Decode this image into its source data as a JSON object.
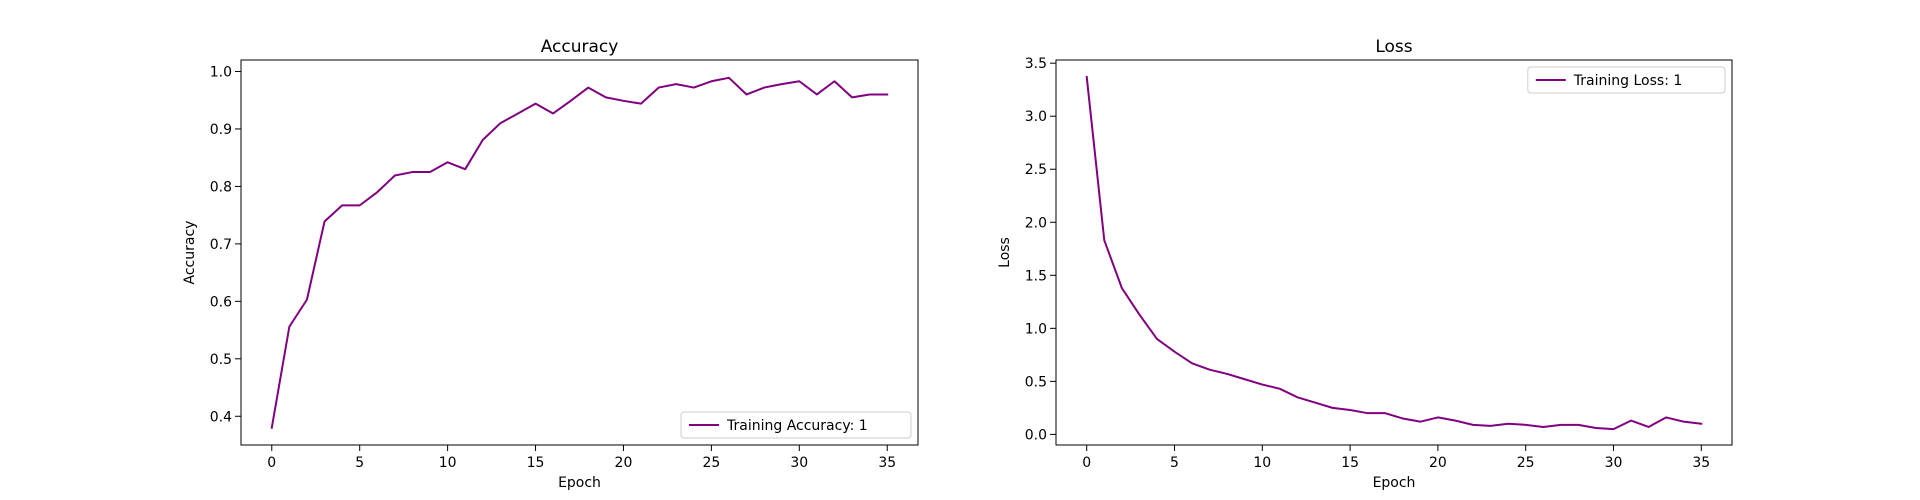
{
  "chart_data": [
    {
      "type": "line",
      "title": "Accuracy",
      "xlabel": "Epoch",
      "ylabel": "Accuracy",
      "xlim": [
        -1.75,
        36.75
      ],
      "ylim": [
        0.35,
        1.02
      ],
      "xticks": [
        0,
        5,
        10,
        15,
        20,
        25,
        30,
        35
      ],
      "yticks": [
        0.4,
        0.5,
        0.6,
        0.7,
        0.8,
        0.9,
        1.0
      ],
      "ytick_labels": [
        "0.4",
        "0.5",
        "0.6",
        "0.7",
        "0.8",
        "0.9",
        "1.0"
      ],
      "grid": false,
      "legend_position": "lower-right",
      "series": [
        {
          "name": "Training Accuracy: 1",
          "color": "#800080",
          "x": [
            0,
            1,
            2,
            3,
            4,
            5,
            6,
            7,
            8,
            9,
            10,
            11,
            12,
            13,
            14,
            15,
            16,
            17,
            18,
            19,
            20,
            21,
            22,
            23,
            24,
            25,
            26,
            27,
            28,
            29,
            30,
            31,
            32,
            33,
            34,
            35
          ],
          "values": [
            0.38,
            0.556,
            0.603,
            0.739,
            0.767,
            0.767,
            0.79,
            0.819,
            0.825,
            0.825,
            0.842,
            0.83,
            0.881,
            0.91,
            0.927,
            0.944,
            0.927,
            0.949,
            0.972,
            0.955,
            0.949,
            0.944,
            0.972,
            0.978,
            0.972,
            0.983,
            0.989,
            0.96,
            0.972,
            0.978,
            0.983,
            0.96,
            0.983,
            0.955,
            0.96,
            0.96
          ]
        }
      ]
    },
    {
      "type": "line",
      "title": "Loss",
      "xlabel": "Epoch",
      "ylabel": "Loss",
      "xlim": [
        -1.75,
        36.75
      ],
      "ylim": [
        -0.1,
        3.53
      ],
      "xticks": [
        0,
        5,
        10,
        15,
        20,
        25,
        30,
        35
      ],
      "yticks": [
        0,
        0.5,
        1.0,
        1.5,
        2.0,
        2.5,
        3.0,
        3.5
      ],
      "ytick_labels": [
        "0.0",
        "0.5",
        "1.0",
        "1.5",
        "2.0",
        "2.5",
        "3.0",
        "3.5"
      ],
      "grid": false,
      "legend_position": "upper-right",
      "series": [
        {
          "name": "Training Loss: 1",
          "color": "#800080",
          "x": [
            0,
            1,
            2,
            3,
            4,
            5,
            6,
            7,
            8,
            9,
            10,
            11,
            12,
            13,
            14,
            15,
            16,
            17,
            18,
            19,
            20,
            21,
            22,
            23,
            24,
            25,
            26,
            27,
            28,
            29,
            30,
            31,
            32,
            33,
            34,
            35
          ],
          "values": [
            3.37,
            1.83,
            1.38,
            1.13,
            0.9,
            0.78,
            0.67,
            0.61,
            0.57,
            0.52,
            0.47,
            0.43,
            0.35,
            0.3,
            0.25,
            0.23,
            0.2,
            0.2,
            0.15,
            0.12,
            0.16,
            0.13,
            0.09,
            0.08,
            0.1,
            0.09,
            0.07,
            0.09,
            0.09,
            0.06,
            0.05,
            0.13,
            0.07,
            0.16,
            0.12,
            0.1
          ]
        }
      ]
    }
  ]
}
